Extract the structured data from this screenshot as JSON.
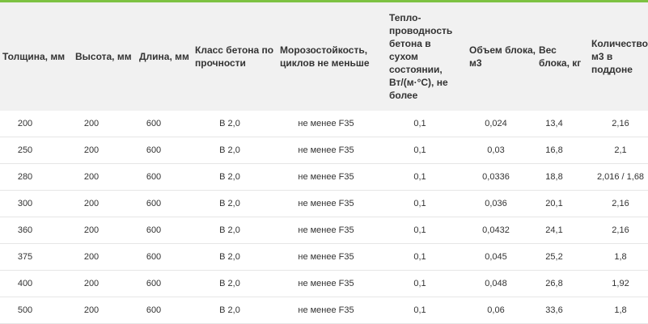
{
  "table": {
    "headers": [
      "Толщина, мм",
      "Высота, мм",
      "Длина, мм",
      "Класс бетона по прочности",
      "Морозостойкость, циклов не меньше",
      "Тепло-проводность бетона в сухом состоянии, Вт/(м·°С), не более",
      "Объем блока, м3",
      "Вес блока, кг",
      "Количество м3 в поддоне"
    ],
    "rows": [
      [
        "200",
        "200",
        "600",
        "B 2,0",
        "не менее F35",
        "0,1",
        "0,024",
        "13,4",
        "2,16"
      ],
      [
        "250",
        "200",
        "600",
        "B 2,0",
        "не менее F35",
        "0,1",
        "0,03",
        "16,8",
        "2,1"
      ],
      [
        "280",
        "200",
        "600",
        "B 2,0",
        "не менее F35",
        "0,1",
        "0,0336",
        "18,8",
        "2,016 / 1,68"
      ],
      [
        "300",
        "200",
        "600",
        "B 2,0",
        "не менее F35",
        "0,1",
        "0,036",
        "20,1",
        "2,16"
      ],
      [
        "360",
        "200",
        "600",
        "B 2,0",
        "не менее F35",
        "0,1",
        "0,0432",
        "24,1",
        "2,16"
      ],
      [
        "375",
        "200",
        "600",
        "B 2,0",
        "не менее F35",
        "0,1",
        "0,045",
        "25,2",
        "1,8"
      ],
      [
        "400",
        "200",
        "600",
        "B 2,0",
        "не менее F35",
        "0,1",
        "0,048",
        "26,8",
        "1,92"
      ],
      [
        "500",
        "200",
        "600",
        "B 2,0",
        "не менее F35",
        "0,1",
        "0,06",
        "33,6",
        "1,8"
      ]
    ]
  }
}
